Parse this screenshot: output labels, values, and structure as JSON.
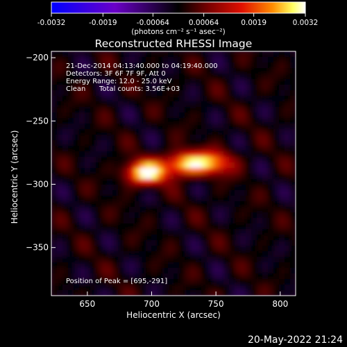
{
  "chart_data": {
    "type": "heatmap",
    "title": "Reconstructed RHESSI Image",
    "xlabel": "Heliocentric X (arcsec)",
    "ylabel": "Heliocentric Y (arcsec)",
    "xlim": [
      622,
      812
    ],
    "ylim": [
      -388,
      -195
    ],
    "x_ticks": [
      650,
      700,
      750,
      800
    ],
    "y_ticks": [
      -200,
      -250,
      -300,
      -350
    ],
    "colorbar": {
      "min": -0.0032,
      "max": 0.0032,
      "tick_values": [
        -0.0032,
        -0.0019,
        -0.00064,
        0.00064,
        0.0019,
        0.0032
      ],
      "tick_labels": [
        "-0.0032",
        "-0.0019",
        "-0.00064",
        "0.00064",
        "0.0019",
        "0.0032"
      ],
      "unit_label": "(photons cm⁻² s⁻¹ asec⁻²)",
      "colors": [
        "#0000ff",
        "#6a00c8",
        "#000000",
        "#7a0000",
        "#e01000",
        "#ff8c00",
        "#ffff60",
        "#ffffff"
      ]
    },
    "annotations": {
      "time_range": "21-Dec-2014 04:13:40.000 to 04:19:40.000",
      "detectors": "Detectors: 3F 6F 7F 9F, Att 0",
      "energy": "Energy Range: 12.0 - 25.0 keV",
      "algorithm": "Clean",
      "counts": "Total counts: 3.56E+03",
      "peak": "Position of Peak = [695,-291]"
    },
    "sources": [
      {
        "x": 695,
        "y": -291,
        "peak": 0.0032
      },
      {
        "x": 725,
        "y": -284,
        "peak": 0.0027
      },
      {
        "x": 748,
        "y": -283,
        "peak": 0.0022
      }
    ]
  },
  "footer": {
    "date": "20-May-2022 21:24"
  }
}
